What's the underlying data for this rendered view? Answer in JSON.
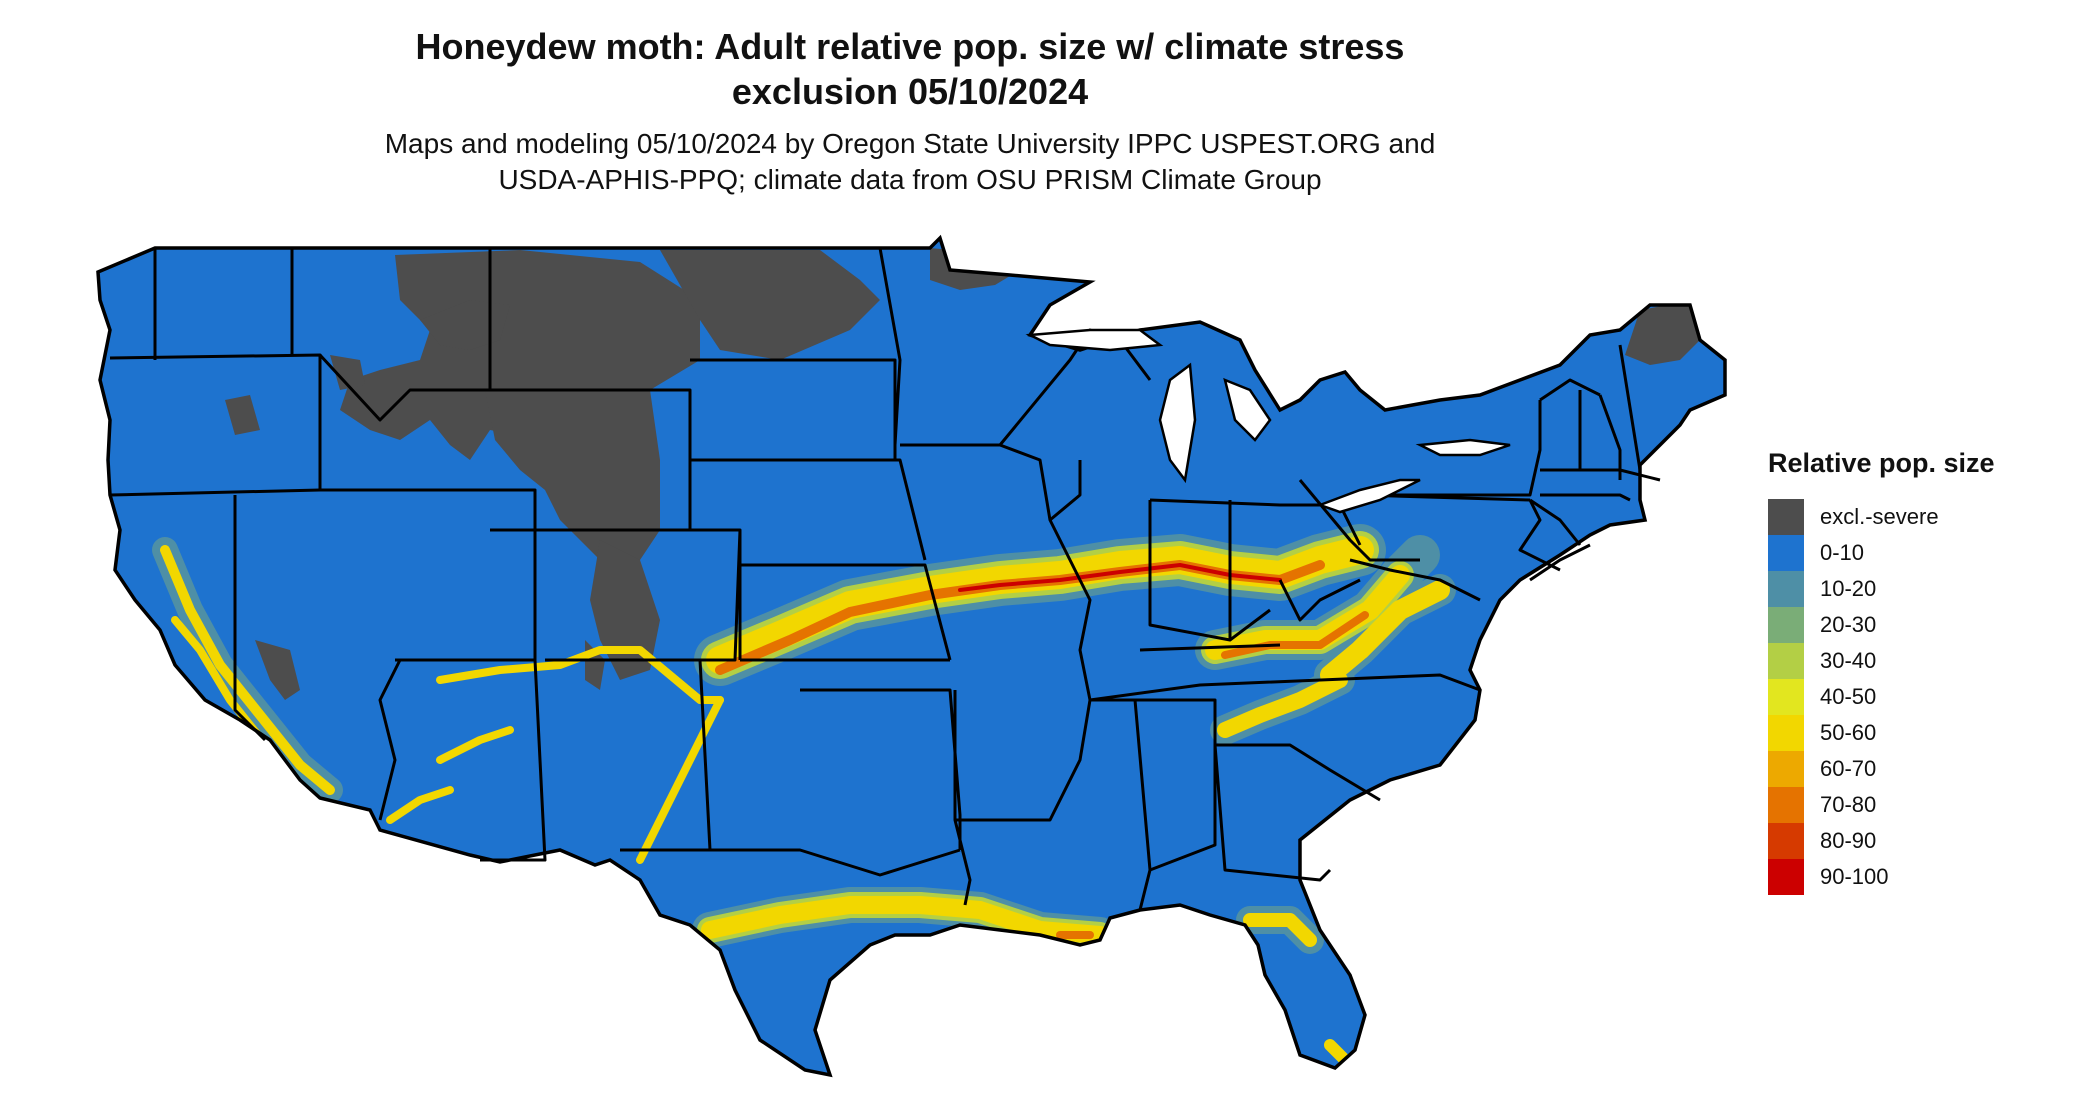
{
  "title_line1": "Honeydew moth: Adult relative pop. size w/ climate stress",
  "title_line2": "exclusion 05/10/2024",
  "subtitle_line1": "Maps and modeling 05/10/2024 by Oregon State University IPPC USPEST.ORG and",
  "subtitle_line2": "USDA-APHIS-PPQ; climate data from OSU PRISM Climate Group",
  "legend": {
    "title": "Relative pop. size",
    "items": [
      {
        "label": "excl.-severe",
        "color": "#4d4d4d"
      },
      {
        "label": "0-10",
        "color": "#1e73cf"
      },
      {
        "label": "10-20",
        "color": "#4e8fa6"
      },
      {
        "label": "20-30",
        "color": "#7aad77"
      },
      {
        "label": "30-40",
        "color": "#b3cf45"
      },
      {
        "label": "40-50",
        "color": "#e2e61f"
      },
      {
        "label": "50-60",
        "color": "#f2d700"
      },
      {
        "label": "60-70",
        "color": "#eda900"
      },
      {
        "label": "70-80",
        "color": "#e57300"
      },
      {
        "label": "80-90",
        "color": "#d63a00"
      },
      {
        "label": "90-100",
        "color": "#cc0000"
      }
    ]
  }
}
